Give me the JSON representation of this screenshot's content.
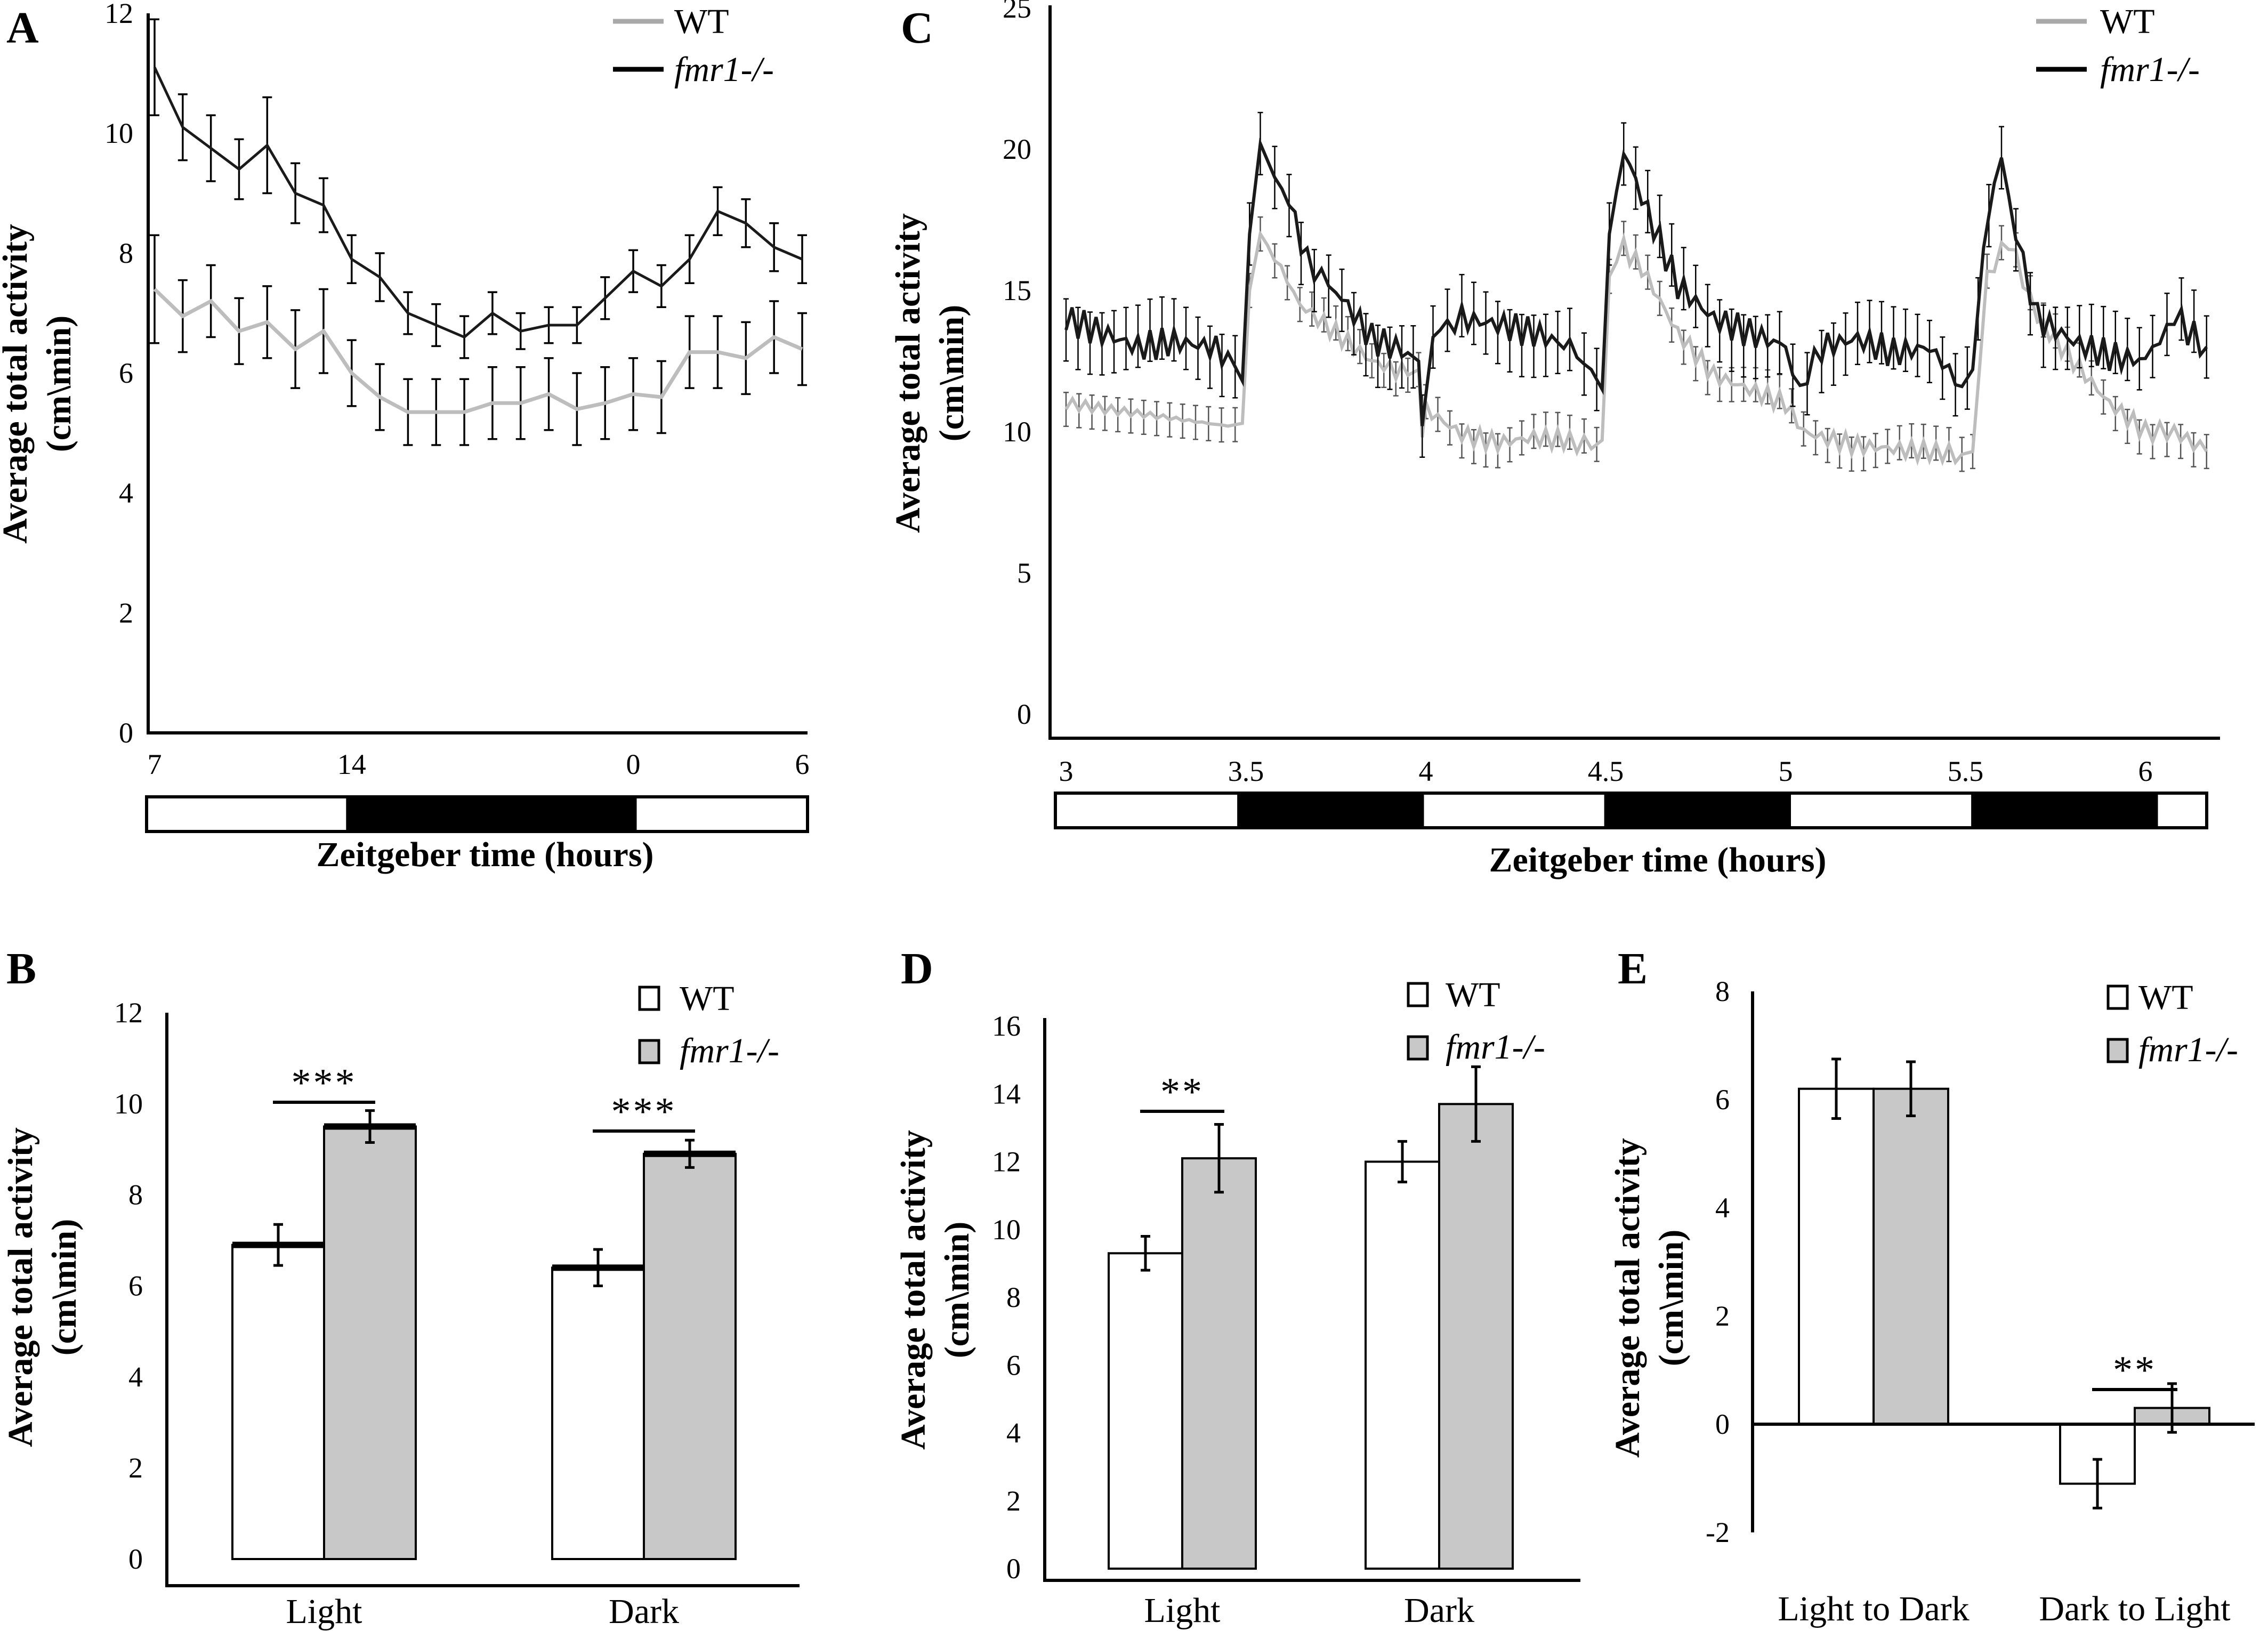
{
  "panels": {
    "A": {
      "letter": "A",
      "ylabel": "Average total activity",
      "yunit": "(cm\\min)",
      "xlabel": "Zeitgeber time (hours)",
      "legend": [
        "WT",
        "fmr1-/-"
      ]
    },
    "B": {
      "letter": "B",
      "ylabel": "Average total activity",
      "yunit": "(cm\\min)",
      "legend": [
        "WT",
        "fmr1-/-"
      ]
    },
    "C": {
      "letter": "C",
      "ylabel": "Average total activity",
      "yunit": "(cm\\min)",
      "xlabel": "Zeitgeber time (hours)",
      "legend": [
        "WT",
        "fmr1-/-"
      ]
    },
    "D": {
      "letter": "D",
      "ylabel": "Average total activity",
      "yunit": "(cm\\min)",
      "legend": [
        "WT",
        "fmr1-/-"
      ]
    },
    "E": {
      "letter": "E",
      "ylabel": "Average total activity",
      "yunit": "(cm\\min)",
      "legend": [
        "WT",
        "fmr1-/-"
      ]
    }
  },
  "colors": {
    "wt_line": "#bdbdbd",
    "wt_legend": "#a9a9a9",
    "fmr1": "#1a1a1a",
    "bar_wt": "#ffffff",
    "bar_fmr1": "#c8c8c8"
  },
  "chart_data": [
    {
      "panel": "A",
      "type": "line",
      "xlabel": "Zeitgeber time (hours)",
      "ylabel": "Average total activity (cm\\min)",
      "ylim": [
        0,
        12
      ],
      "yticks": [
        0,
        2,
        4,
        6,
        8,
        10,
        12
      ],
      "xtick_labels": [
        {
          "label": "7",
          "index": 0
        },
        {
          "label": "14",
          "index": 7
        },
        {
          "label": "0",
          "index": 17
        },
        {
          "label": "6",
          "index": 23
        }
      ],
      "light_dark_bar": [
        {
          "phase": "light",
          "from": 0,
          "to": 7
        },
        {
          "phase": "dark",
          "from": 7,
          "to": 17
        },
        {
          "phase": "light",
          "from": 17,
          "to": 23
        }
      ],
      "series": [
        {
          "name": "WT",
          "values": [
            7.4,
            6.95,
            7.2,
            6.7,
            6.85,
            6.4,
            6.7,
            6.0,
            5.6,
            5.35,
            5.35,
            5.35,
            5.5,
            5.5,
            5.65,
            5.4,
            5.5,
            5.65,
            5.6,
            6.35,
            6.35,
            6.25,
            6.6,
            6.4
          ],
          "errors": [
            0.9,
            0.6,
            0.6,
            0.55,
            0.6,
            0.65,
            0.7,
            0.55,
            0.55,
            0.55,
            0.55,
            0.55,
            0.6,
            0.6,
            0.6,
            0.6,
            0.6,
            0.6,
            0.6,
            0.6,
            0.6,
            0.6,
            0.6,
            0.6
          ]
        },
        {
          "name": "fmr1-/-",
          "values": [
            11.1,
            10.1,
            9.75,
            9.4,
            9.8,
            9.0,
            8.8,
            7.9,
            7.6,
            7.0,
            6.8,
            6.6,
            7.0,
            6.7,
            6.8,
            6.8,
            7.25,
            7.7,
            7.45,
            7.9,
            8.7,
            8.5,
            8.1,
            7.9
          ],
          "errors": [
            0.8,
            0.55,
            0.55,
            0.5,
            0.8,
            0.5,
            0.45,
            0.4,
            0.4,
            0.35,
            0.35,
            0.35,
            0.35,
            0.3,
            0.3,
            0.3,
            0.35,
            0.35,
            0.35,
            0.4,
            0.4,
            0.4,
            0.4,
            0.4
          ]
        }
      ]
    },
    {
      "panel": "B",
      "type": "bar",
      "categories": [
        "Light",
        "Dark"
      ],
      "ylim": [
        0,
        12
      ],
      "yticks": [
        0,
        2,
        4,
        6,
        8,
        10,
        12
      ],
      "ylabel": "Average total activity (cm\\min)",
      "series": [
        {
          "name": "WT",
          "values": [
            6.9,
            6.4
          ],
          "errors": [
            0.45,
            0.4
          ]
        },
        {
          "name": "fmr1-/-",
          "values": [
            9.5,
            8.9
          ],
          "errors": [
            0.35,
            0.3
          ]
        }
      ],
      "significance": [
        {
          "category": "Light",
          "label": "***"
        },
        {
          "category": "Dark",
          "label": "***"
        }
      ]
    },
    {
      "panel": "C",
      "type": "line",
      "xlabel": "Zeitgeber time (hours)",
      "ylabel": "Average total activity (cm\\min)",
      "ylim": [
        0,
        25
      ],
      "yticks": [
        0,
        5,
        10,
        15,
        20,
        25
      ],
      "xlim": [
        3.0,
        6.2
      ],
      "xtick_labels": [
        "3",
        "3.5",
        "4",
        "4.5",
        "5",
        "5.5",
        "6"
      ],
      "xticks": [
        3.0,
        3.5,
        4.0,
        4.5,
        5.0,
        5.5,
        6.0
      ],
      "light_dark_bar": [
        {
          "phase": "light",
          "from": 3.0,
          "to": 3.51
        },
        {
          "phase": "dark",
          "from": 3.51,
          "to": 4.02
        },
        {
          "phase": "light",
          "from": 4.02,
          "to": 4.53
        },
        {
          "phase": "dark",
          "from": 4.53,
          "to": 5.04
        },
        {
          "phase": "light",
          "from": 5.04,
          "to": 5.55
        },
        {
          "phase": "dark",
          "from": 5.55,
          "to": 6.06
        },
        {
          "phase": "light",
          "from": 6.06,
          "to": 6.2
        }
      ],
      "series": [
        {
          "name": "WT",
          "x": [
            3.0,
            3.45,
            3.49,
            3.51,
            3.54,
            3.58,
            3.65,
            3.75,
            3.85,
            3.95,
            3.98,
            3.99,
            4.0,
            4.1,
            4.2,
            4.3,
            4.4,
            4.46,
            4.49,
            4.51,
            4.55,
            4.6,
            4.7,
            4.8,
            4.9,
            5.0,
            5.05,
            5.1,
            5.2,
            5.3,
            5.4,
            5.49,
            5.52,
            5.56,
            5.62,
            5.7,
            5.8,
            5.9,
            6.0,
            6.08,
            6.17
          ],
          "values": [
            11.0,
            10.2,
            10.3,
            15.0,
            17.0,
            16.2,
            14.5,
            13.5,
            12.5,
            12.0,
            12.2,
            9.8,
            10.8,
            9.9,
            9.6,
            9.8,
            9.7,
            9.4,
            9.7,
            15.5,
            16.5,
            15.8,
            13.5,
            12.0,
            11.5,
            11.0,
            10.0,
            9.8,
            9.5,
            9.4,
            9.3,
            9.2,
            9.3,
            15.5,
            16.8,
            14.0,
            12.5,
            11.0,
            10.0,
            10.0,
            9.3
          ],
          "error": 0.6
        },
        {
          "name": "fmr1-/-",
          "x": [
            3.0,
            3.1,
            3.2,
            3.3,
            3.4,
            3.45,
            3.49,
            3.51,
            3.54,
            3.58,
            3.62,
            3.67,
            3.75,
            3.85,
            3.95,
            3.98,
            3.99,
            4.0,
            4.02,
            4.1,
            4.2,
            4.3,
            4.4,
            4.46,
            4.49,
            4.51,
            4.55,
            4.6,
            4.7,
            4.8,
            4.9,
            5.0,
            5.02,
            5.04,
            5.1,
            5.2,
            5.3,
            5.4,
            5.49,
            5.52,
            5.55,
            5.58,
            5.6,
            5.64,
            5.7,
            5.8,
            5.9,
            6.0,
            6.06,
            6.1,
            6.17
          ],
          "values": [
            14.0,
            13.5,
            13.0,
            13.2,
            13.0,
            12.8,
            11.8,
            17.0,
            20.2,
            19.0,
            18.2,
            16.0,
            15.0,
            13.3,
            12.8,
            12.5,
            10.2,
            11.3,
            13.5,
            14.0,
            13.8,
            13.5,
            13.0,
            12.2,
            11.5,
            17.0,
            20.0,
            18.3,
            15.2,
            14.0,
            13.5,
            13.0,
            12.0,
            11.5,
            13.0,
            13.3,
            12.8,
            13.0,
            11.6,
            12.2,
            16.5,
            18.8,
            19.7,
            17.0,
            14.0,
            13.2,
            12.7,
            12.5,
            13.8,
            13.8,
            13.0
          ],
          "error": 1.1
        }
      ]
    },
    {
      "panel": "D",
      "type": "bar",
      "categories": [
        "Light",
        "Dark"
      ],
      "ylim": [
        0,
        16
      ],
      "yticks": [
        0,
        2,
        4,
        6,
        8,
        10,
        12,
        14,
        16
      ],
      "ylabel": "Average total activity (cm\\min)",
      "series": [
        {
          "name": "WT",
          "values": [
            9.3,
            12.0
          ],
          "errors": [
            0.5,
            0.6
          ]
        },
        {
          "name": "fmr1-/-",
          "values": [
            12.1,
            13.7
          ],
          "errors": [
            1.0,
            1.1
          ]
        }
      ],
      "significance": [
        {
          "category": "Light",
          "label": "**"
        }
      ]
    },
    {
      "panel": "E",
      "type": "bar",
      "categories": [
        "Light to Dark",
        "Dark to Light"
      ],
      "ylim": [
        -2,
        8
      ],
      "yticks": [
        -2,
        0,
        2,
        4,
        6,
        8
      ],
      "ylabel": "Average total activity (cm\\min)",
      "series": [
        {
          "name": "WT",
          "values": [
            6.2,
            -1.1
          ],
          "errors": [
            0.55,
            0.45
          ]
        },
        {
          "name": "fmr1-/-",
          "values": [
            6.2,
            0.3
          ],
          "errors": [
            0.5,
            0.45
          ]
        }
      ],
      "significance": [
        {
          "category": "Dark to Light",
          "label": "**"
        }
      ]
    }
  ]
}
